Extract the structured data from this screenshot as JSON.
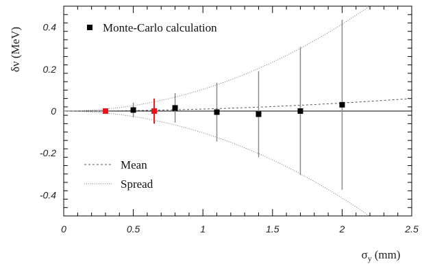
{
  "chart_data": {
    "type": "scatter",
    "xlabel": "σ_y (mm)",
    "xlabel_main": "σ",
    "xlabel_sub": "y",
    "xlabel_unit": "(mm)",
    "ylabel": "δν (MeV)",
    "xlim": [
      0,
      2.5
    ],
    "ylim": [
      -0.5,
      0.5
    ],
    "x_ticks": [
      0,
      0.5,
      1,
      1.5,
      2,
      2.5
    ],
    "x_tick_labels": [
      "0",
      "0.5",
      "1",
      "1.5",
      "2",
      "2.5"
    ],
    "y_ticks": [
      -0.4,
      -0.2,
      0,
      0.2,
      0.4
    ],
    "y_tick_labels": [
      "-0.4",
      "-0.2",
      "0",
      "0.2",
      "0.4"
    ],
    "grid": false,
    "legend_placement": "top-left",
    "series": [
      {
        "name": "Monte-Carlo calculation",
        "marker": "square",
        "color": "#000000",
        "points": [
          {
            "x": 0.5,
            "y": 0.005,
            "err": 0.035
          },
          {
            "x": 0.8,
            "y": 0.015,
            "err": 0.07
          },
          {
            "x": 1.1,
            "y": -0.005,
            "err": 0.14
          },
          {
            "x": 1.4,
            "y": -0.015,
            "err": 0.205
          },
          {
            "x": 1.7,
            "y": 0.0,
            "err": 0.305
          },
          {
            "x": 2.0,
            "y": 0.03,
            "err": 0.405
          }
        ]
      },
      {
        "marker": "square",
        "color": "#e8141a",
        "points": [
          {
            "x": 0.3,
            "y": 0.0,
            "err": 0.0
          },
          {
            "x": 0.65,
            "y": 0.0,
            "err": 0.06
          }
        ]
      }
    ],
    "curves": [
      {
        "name": "Mean",
        "style": "dashed",
        "coef": 0.0096
      },
      {
        "name": "Spread",
        "style": "dotted",
        "coef": 0.1036
      }
    ]
  }
}
